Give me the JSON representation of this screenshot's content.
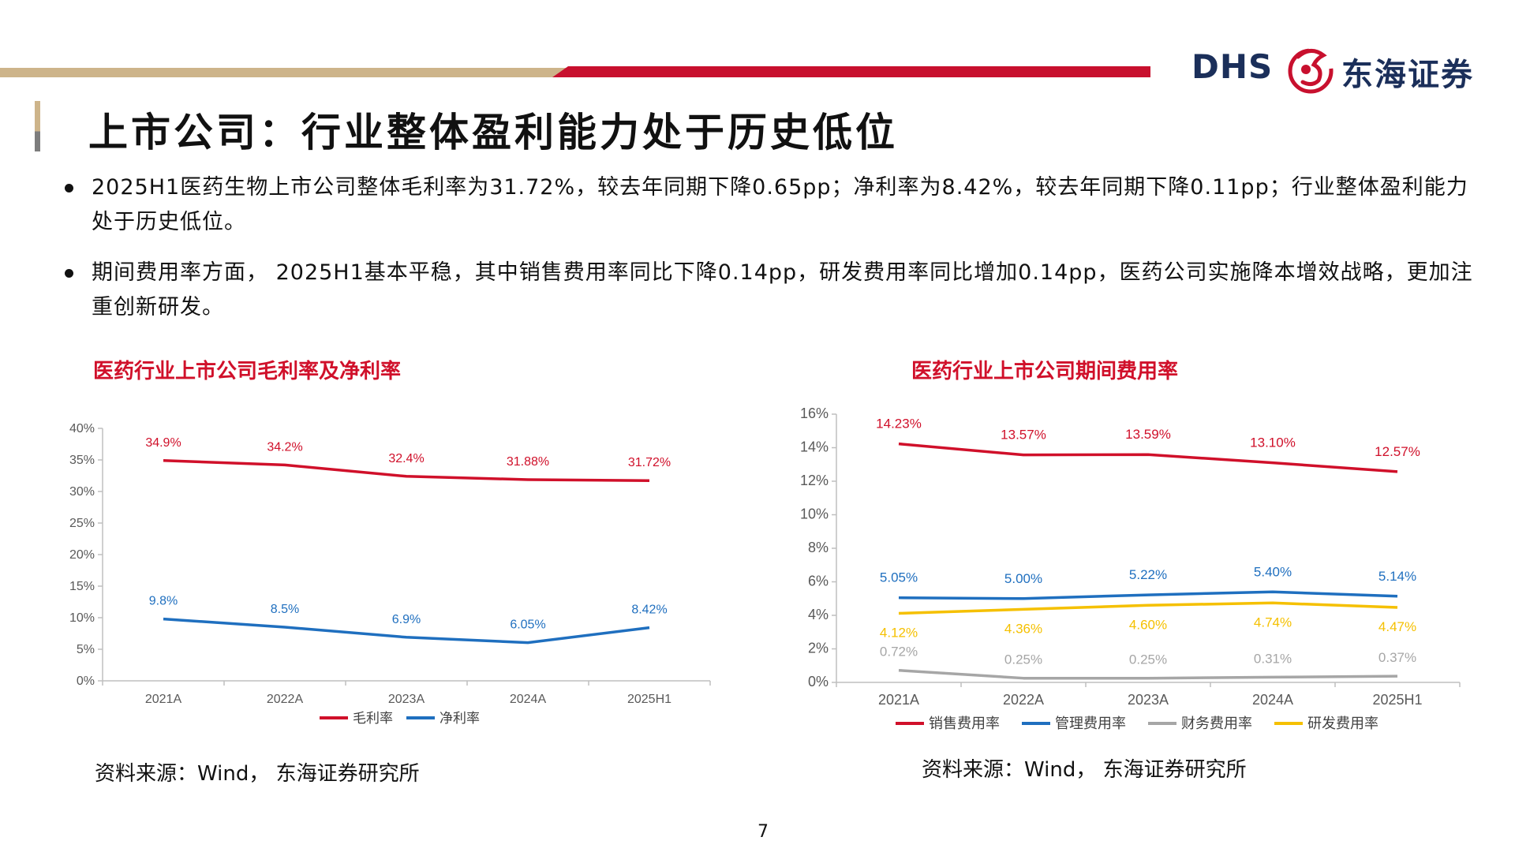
{
  "header": {
    "logo_latin": "DHS",
    "logo_cn": "东海证券"
  },
  "page_title": "上市公司：行业整体盈利能力处于历史低位",
  "bullets": [
    "2025H1医药生物上市公司整体毛利率为31.72%，较去年同期下降0.65pp；净利率为8.42%，较去年同期下降0.11pp；行业整体盈利能力处于历史低位。",
    "期间费用率方面， 2025H1基本平稳，其中销售费用率同比下降0.14pp，研发费用率同比增加0.14pp，医药公司实施降本增效战略，更加注重创新研发。"
  ],
  "colors": {
    "brand_red": "#c8102e",
    "brand_gold": "#cdb48a",
    "brand_navy": "#1b2f5a",
    "series_red": "#d0102a",
    "series_blue": "#1f6fbf",
    "series_gray": "#a6a6a6",
    "series_yellow": "#f5c000"
  },
  "chart_data": [
    {
      "type": "line",
      "title": "医药行业上市公司毛利率及净利率",
      "categories": [
        "2021A",
        "2022A",
        "2023A",
        "2024A",
        "2025H1"
      ],
      "ylim": [
        0,
        40
      ],
      "yticks": [
        0,
        5,
        10,
        15,
        20,
        25,
        30,
        35,
        40
      ],
      "ytick_labels": [
        "0%",
        "5%",
        "10%",
        "15%",
        "20%",
        "25%",
        "30%",
        "35%",
        "40%"
      ],
      "grid": false,
      "legend": "bottom",
      "series": [
        {
          "name": "毛利率",
          "color": "#d0102a",
          "values": [
            34.9,
            34.2,
            32.4,
            31.88,
            31.72
          ],
          "labels": [
            "34.9%",
            "34.2%",
            "32.4%",
            "31.88%",
            "31.72%"
          ]
        },
        {
          "name": "净利率",
          "color": "#1f6fbf",
          "values": [
            9.8,
            8.5,
            6.9,
            6.05,
            8.42
          ],
          "labels": [
            "9.8%",
            "8.5%",
            "6.9%",
            "6.05%",
            "8.42%"
          ]
        }
      ],
      "source": "资料来源：Wind， 东海证券研究所"
    },
    {
      "type": "line",
      "title": "医药行业上市公司期间费用率",
      "categories": [
        "2021A",
        "2022A",
        "2023A",
        "2024A",
        "2025H1"
      ],
      "ylim": [
        0,
        16
      ],
      "yticks": [
        0,
        2,
        4,
        6,
        8,
        10,
        12,
        14,
        16
      ],
      "ytick_labels": [
        "0%",
        "2%",
        "4%",
        "6%",
        "8%",
        "10%",
        "12%",
        "14%",
        "16%"
      ],
      "grid": false,
      "legend": "bottom",
      "series": [
        {
          "name": "销售费用率",
          "color": "#d0102a",
          "values": [
            14.23,
            13.57,
            13.59,
            13.1,
            12.57
          ],
          "labels": [
            "14.23%",
            "13.57%",
            "13.59%",
            "13.10%",
            "12.57%"
          ]
        },
        {
          "name": "管理费用率",
          "color": "#1f6fbf",
          "values": [
            5.05,
            5.0,
            5.22,
            5.4,
            5.14
          ],
          "labels": [
            "5.05%",
            "5.00%",
            "5.22%",
            "5.40%",
            "5.14%"
          ]
        },
        {
          "name": "财务费用率",
          "color": "#a6a6a6",
          "values": [
            0.72,
            0.25,
            0.25,
            0.31,
            0.37
          ],
          "labels": [
            "0.72%",
            "0.25%",
            "0.25%",
            "0.31%",
            "0.37%"
          ]
        },
        {
          "name": "研发费用率",
          "color": "#f5c000",
          "values": [
            4.12,
            4.36,
            4.6,
            4.74,
            4.47
          ],
          "labels": [
            "4.12%",
            "4.36%",
            "4.60%",
            "4.74%",
            "4.47%"
          ]
        }
      ],
      "source": "资料来源：Wind， 东海证券研究所"
    }
  ],
  "page_number": "7"
}
